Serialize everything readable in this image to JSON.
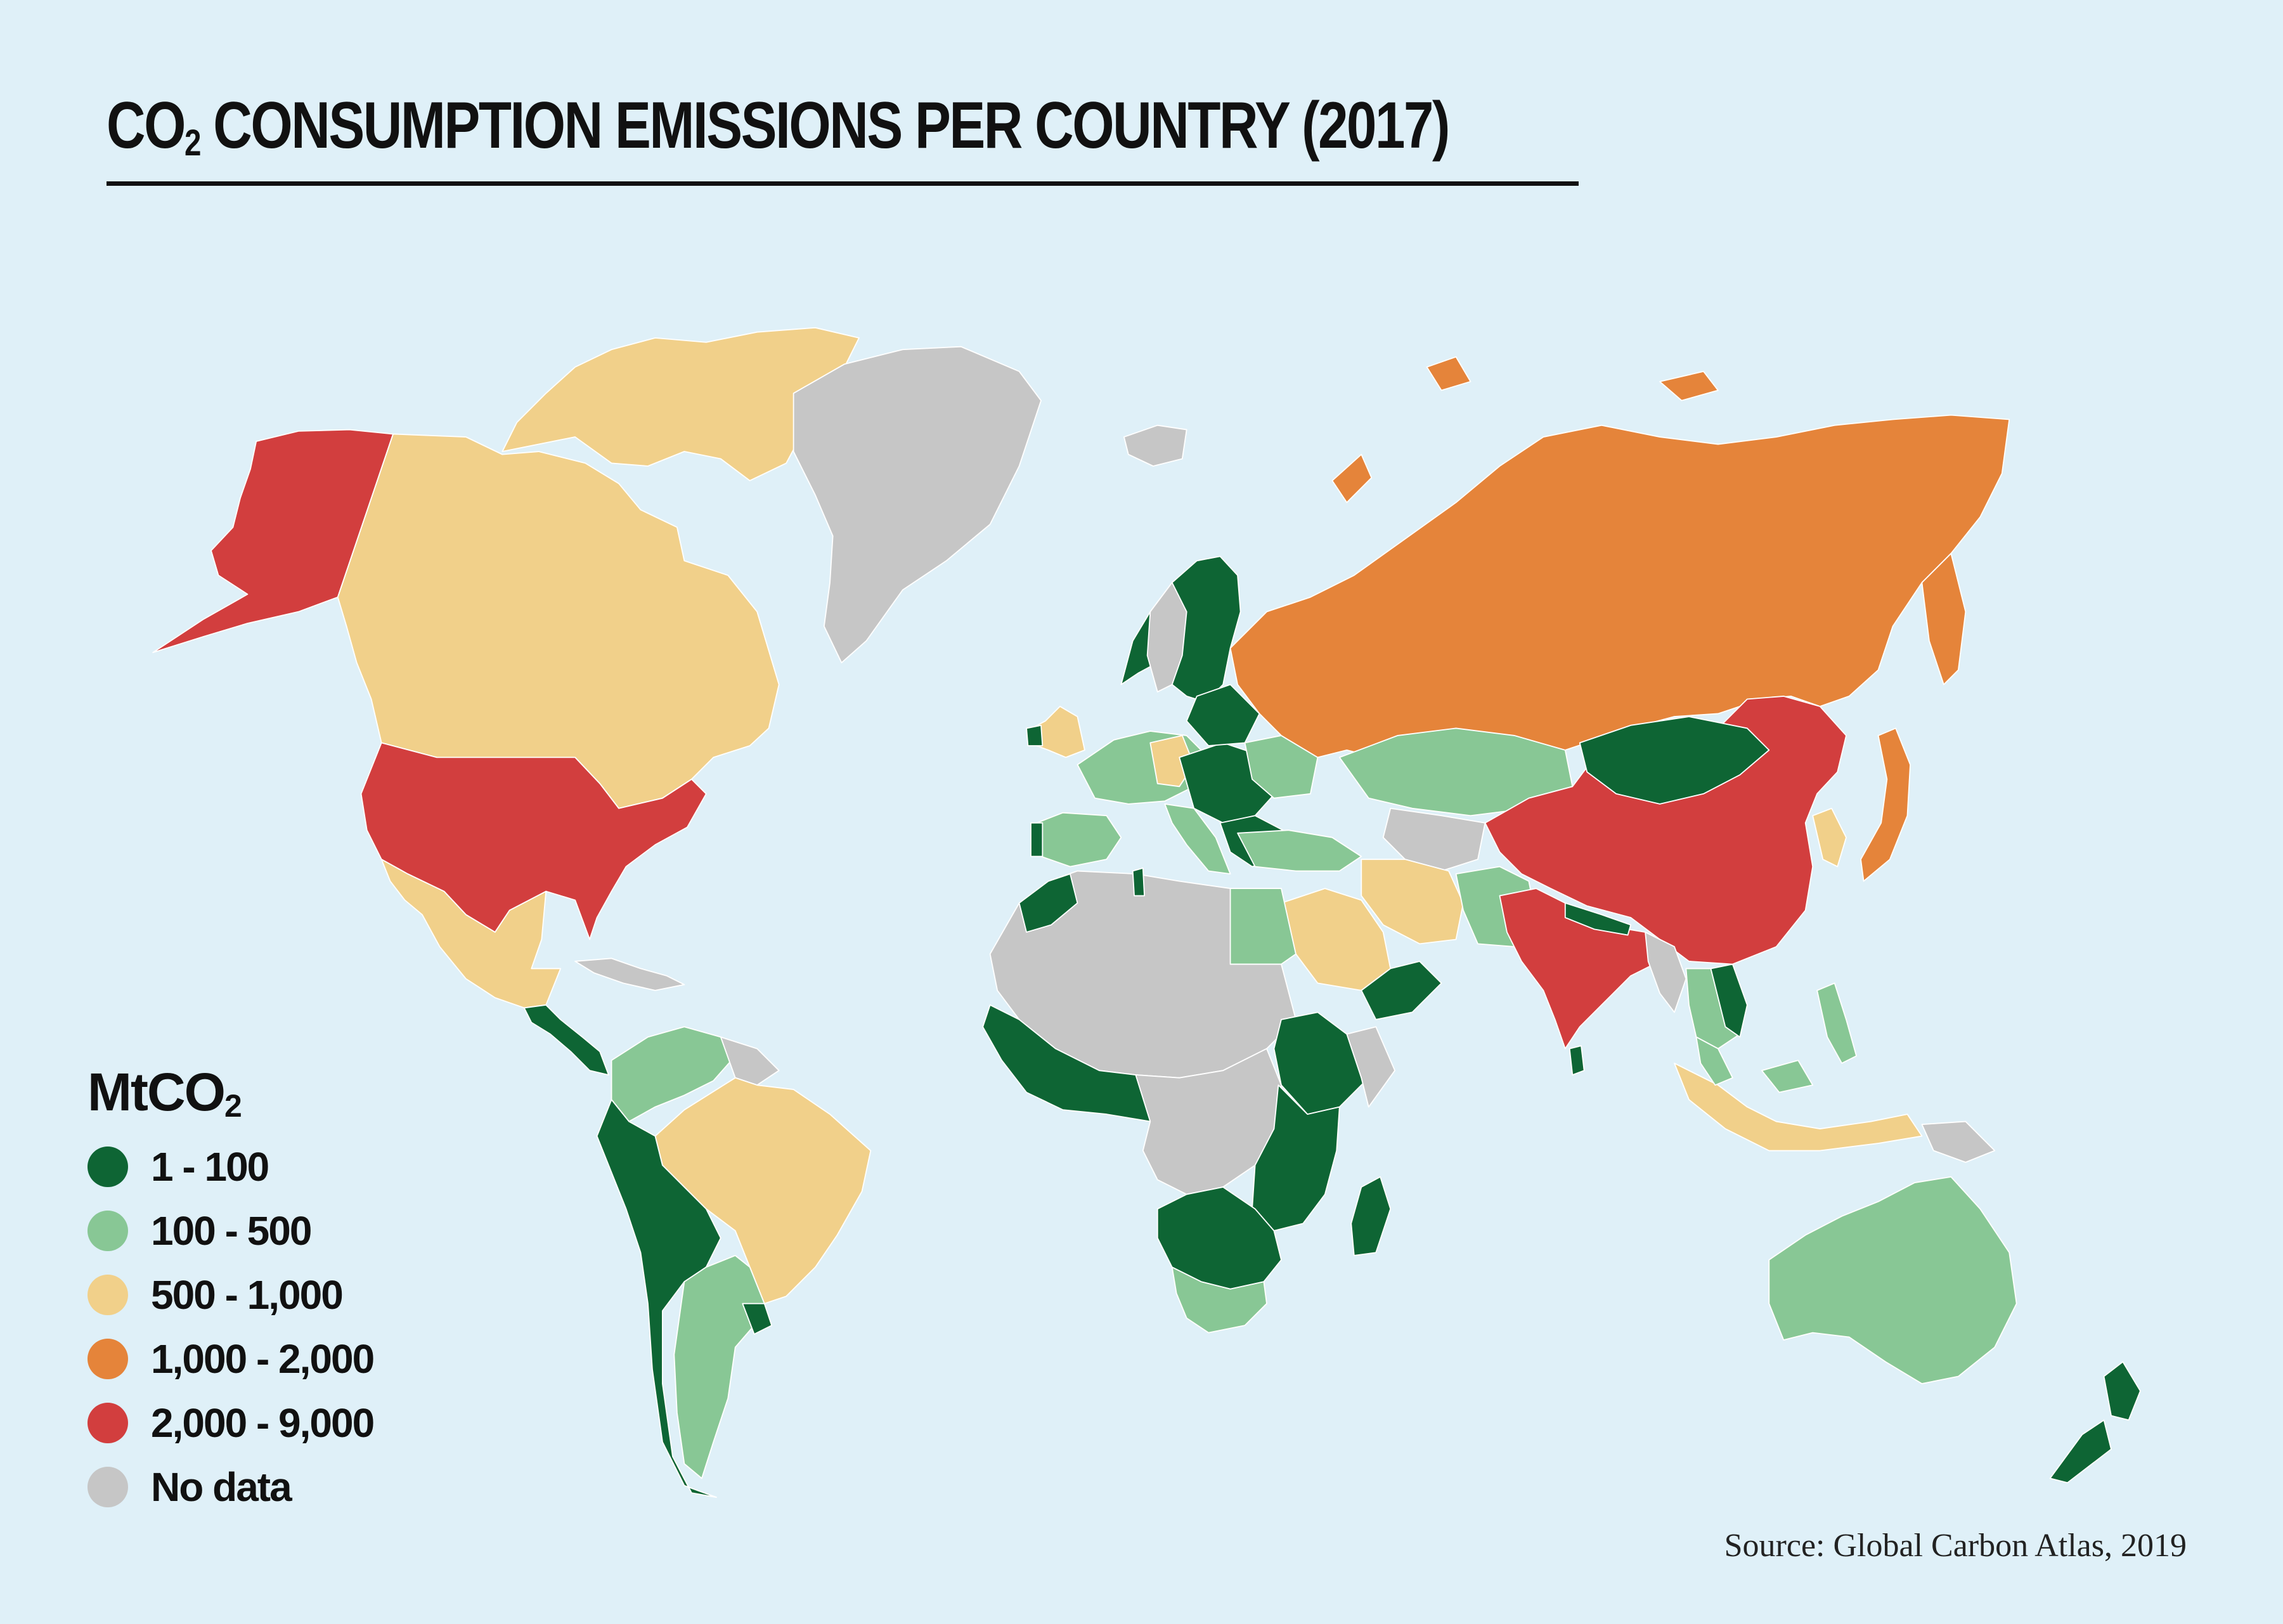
{
  "title": {
    "prefix": "CO",
    "subscript": "2",
    "suffix": " CONSUMPTION EMISSIONS PER COUNTRY (2017)"
  },
  "legend": {
    "title_prefix": "MtCO",
    "title_subscript": "2",
    "items": [
      {
        "label": "1 - 100",
        "color": "#0e6534"
      },
      {
        "label": "100 - 500",
        "color": "#88c795"
      },
      {
        "label": "500 - 1,000",
        "color": "#f1d08a"
      },
      {
        "label": "1,000 -  2,000",
        "color": "#e5843a"
      },
      {
        "label": "2,000 -  9,000",
        "color": "#d23e3e"
      },
      {
        "label": "No data",
        "color": "#c6c6c6"
      }
    ]
  },
  "source": "Source: Global Carbon Atlas, 2019",
  "colors": {
    "background": "#dff0f8",
    "border": "#ffffff"
  }
}
